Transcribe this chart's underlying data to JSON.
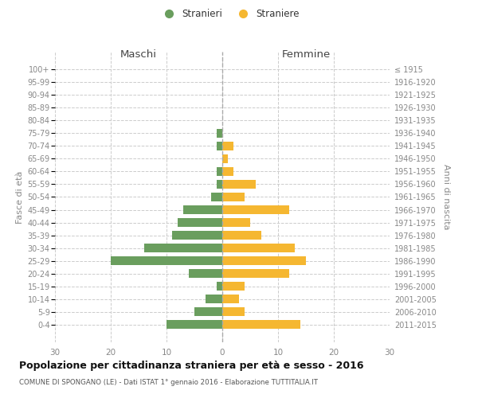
{
  "age_groups": [
    "100+",
    "95-99",
    "90-94",
    "85-89",
    "80-84",
    "75-79",
    "70-74",
    "65-69",
    "60-64",
    "55-59",
    "50-54",
    "45-49",
    "40-44",
    "35-39",
    "30-34",
    "25-29",
    "20-24",
    "15-19",
    "10-14",
    "5-9",
    "0-4"
  ],
  "birth_years": [
    "≤ 1915",
    "1916-1920",
    "1921-1925",
    "1926-1930",
    "1931-1935",
    "1936-1940",
    "1941-1945",
    "1946-1950",
    "1951-1955",
    "1956-1960",
    "1961-1965",
    "1966-1970",
    "1971-1975",
    "1976-1980",
    "1981-1985",
    "1986-1990",
    "1991-1995",
    "1996-2000",
    "2001-2005",
    "2006-2010",
    "2011-2015"
  ],
  "maschi": [
    0,
    0,
    0,
    0,
    0,
    1,
    1,
    0,
    1,
    1,
    2,
    7,
    8,
    9,
    14,
    20,
    6,
    1,
    3,
    5,
    10
  ],
  "femmine": [
    0,
    0,
    0,
    0,
    0,
    0,
    2,
    1,
    2,
    6,
    4,
    12,
    5,
    7,
    13,
    15,
    12,
    4,
    3,
    4,
    14
  ],
  "color_maschi": "#6a9e5e",
  "color_femmine": "#f5b731",
  "title": "Popolazione per cittadinanza straniera per età e sesso - 2016",
  "subtitle": "COMUNE DI SPONGANO (LE) - Dati ISTAT 1° gennaio 2016 - Elaborazione TUTTITALIA.IT",
  "label_maschi": "Maschi",
  "label_femmine": "Femmine",
  "ylabel_left": "Fasce di età",
  "ylabel_right": "Anni di nascita",
  "xlim": 30,
  "legend_stranieri": "Stranieri",
  "legend_straniere": "Straniere",
  "bg_color": "#ffffff",
  "grid_color": "#cccccc",
  "tick_color": "#888888",
  "header_color": "#444444",
  "center_line_color": "#aaaaaa"
}
